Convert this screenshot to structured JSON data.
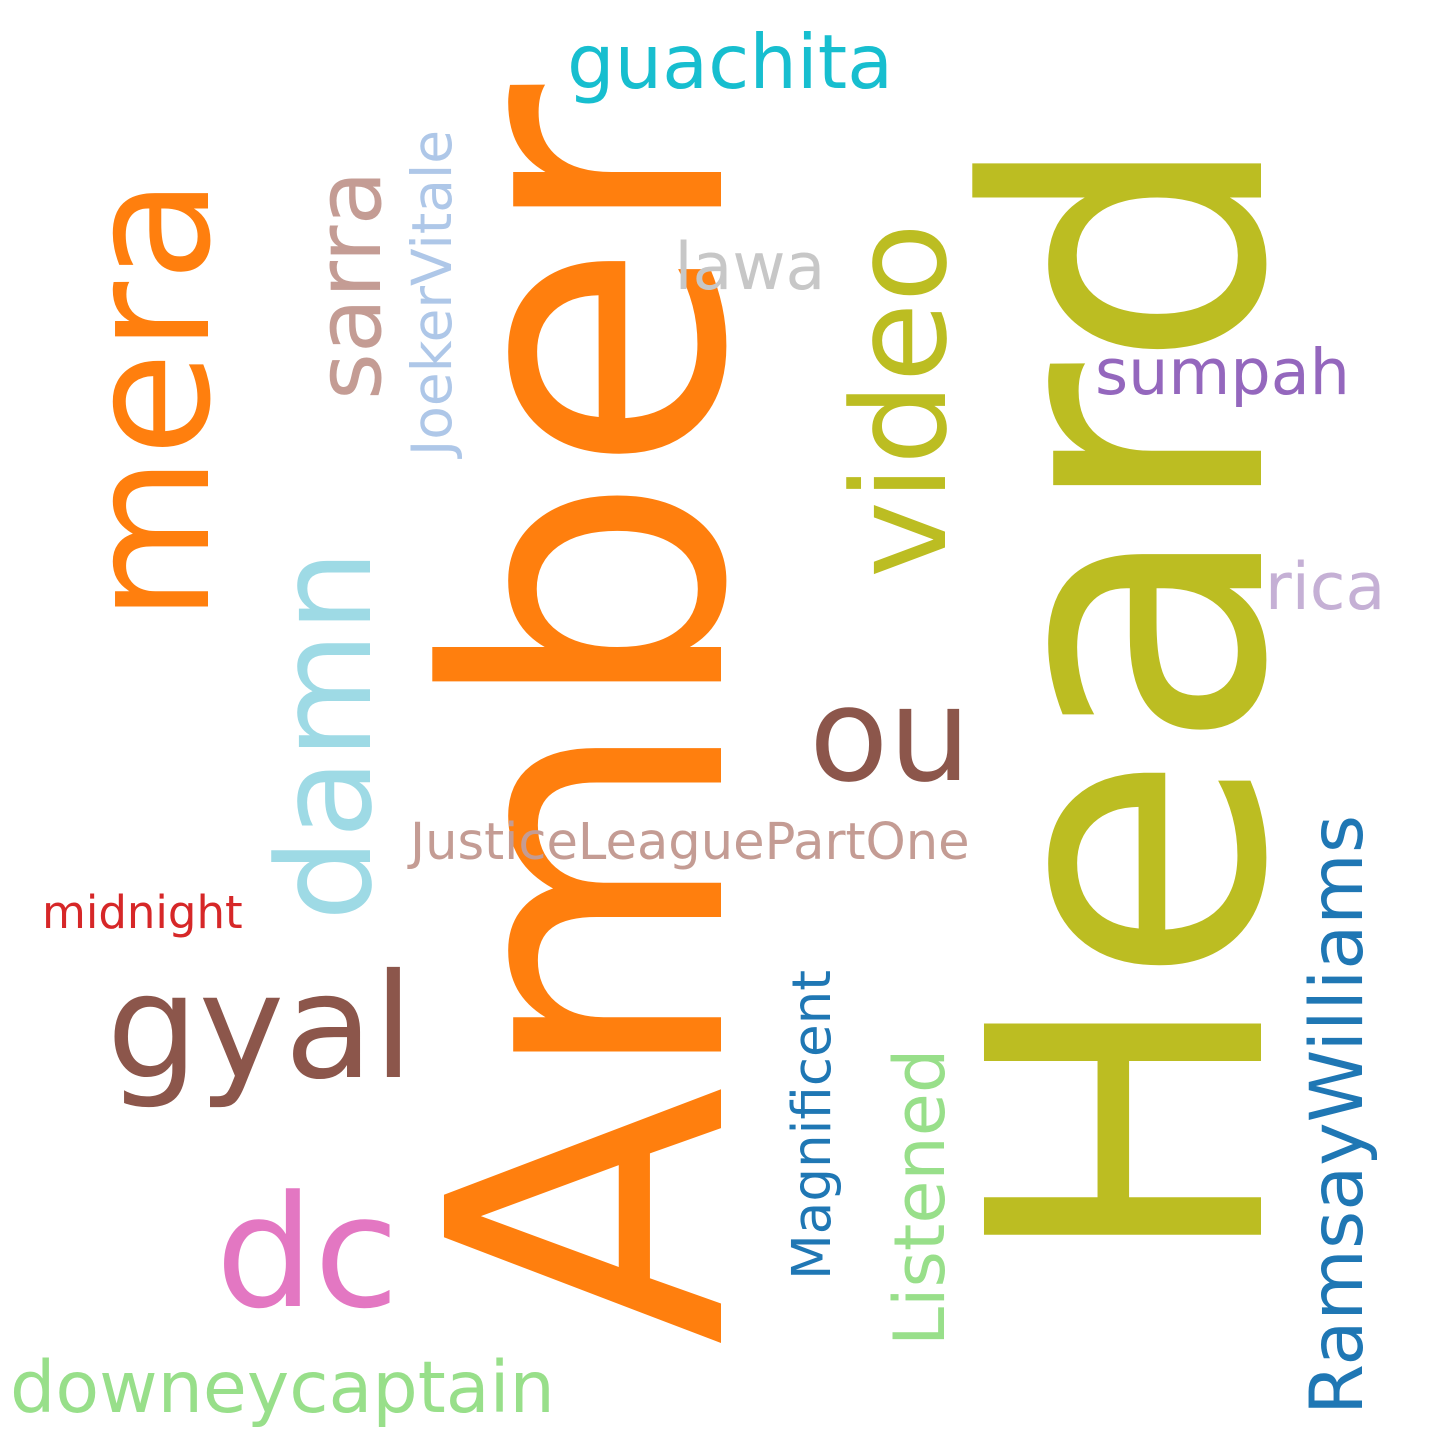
{
  "words": [
    {
      "key": "heard",
      "text": "Heard",
      "color": "#bcbd22",
      "orientation": "vertical"
    },
    {
      "key": "amber",
      "text": "Amber",
      "color": "#ff7f0e",
      "orientation": "vertical"
    },
    {
      "key": "mera",
      "text": "mera",
      "color": "#ff7f0e",
      "orientation": "vertical"
    },
    {
      "key": "damn",
      "text": "damn",
      "color": "#9edae5",
      "orientation": "vertical"
    },
    {
      "key": "sarra",
      "text": "sarra",
      "color": "#c49c94",
      "orientation": "vertical"
    },
    {
      "key": "video",
      "text": "video",
      "color": "#bcbd22",
      "orientation": "vertical"
    },
    {
      "key": "joekervitale",
      "text": "JoekerVitale",
      "color": "#aec7e8",
      "orientation": "vertical"
    },
    {
      "key": "guachita",
      "text": "guachita",
      "color": "#17becf",
      "orientation": "horizontal"
    },
    {
      "key": "lawa",
      "text": "lawa",
      "color": "#c7c7c7",
      "orientation": "horizontal"
    },
    {
      "key": "sumpah",
      "text": "sumpah",
      "color": "#9467bd",
      "orientation": "horizontal"
    },
    {
      "key": "rica",
      "text": "rica",
      "color": "#c5b0d5",
      "orientation": "horizontal"
    },
    {
      "key": "ou",
      "text": "ou",
      "color": "#8c564b",
      "orientation": "horizontal"
    },
    {
      "key": "justice",
      "text": "JusticeLeaguePartOne",
      "color": "#c49c94",
      "orientation": "horizontal"
    },
    {
      "key": "midnight",
      "text": "midnight",
      "color": "#d62728",
      "orientation": "horizontal"
    },
    {
      "key": "gyal",
      "text": "gyal",
      "color": "#8c564b",
      "orientation": "horizontal"
    },
    {
      "key": "dc",
      "text": "dc",
      "color": "#e377c2",
      "orientation": "horizontal"
    },
    {
      "key": "downey",
      "text": "downeycaptain",
      "color": "#98df8a",
      "orientation": "horizontal"
    },
    {
      "key": "ramsay",
      "text": "RamsayWilliams",
      "color": "#1f77b4",
      "orientation": "vertical"
    },
    {
      "key": "magnificent",
      "text": "Magnificent",
      "color": "#1f77b4",
      "orientation": "vertical"
    },
    {
      "key": "listened",
      "text": "Listened",
      "color": "#98df8a",
      "orientation": "vertical"
    }
  ]
}
